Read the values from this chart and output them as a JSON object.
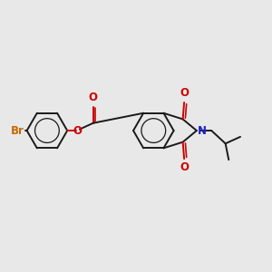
{
  "bg_color": "#e8e8e8",
  "bond_color": "#1a1a1a",
  "bond_lw": 1.4,
  "n_color": "#2222cc",
  "o_color": "#cc0000",
  "br_color": "#cc6600",
  "font_size": 8.5,
  "figsize": [
    3.0,
    3.0
  ],
  "dpi": 100,
  "ring_r": 0.075,
  "doff": 0.009,
  "xlim": [
    0,
    1
  ],
  "ylim": [
    0,
    1
  ]
}
